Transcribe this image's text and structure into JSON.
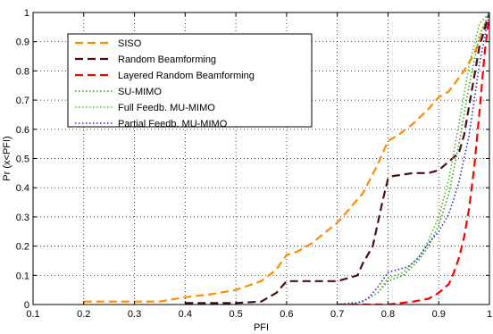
{
  "chart_data": {
    "type": "line",
    "title": "",
    "xlabel": "PFI",
    "ylabel": "Pr (x<PFI)",
    "xlim": [
      0.1,
      1
    ],
    "ylim": [
      0,
      1
    ],
    "xticks": [
      "0.1",
      "0.2",
      "0.3",
      "0.4",
      "0.5",
      "0.6",
      "0.7",
      "0.8",
      "0.9",
      "1"
    ],
    "yticks": [
      "0",
      "0.1",
      "0.2",
      "0.3",
      "0.4",
      "0.5",
      "0.6",
      "0.7",
      "0.8",
      "0.9",
      "1"
    ],
    "grid": true,
    "legend_position": "top-left",
    "series": [
      {
        "name": "SISO",
        "color": "#ff8c00",
        "dash": "dashed",
        "x": [
          0.2,
          0.35,
          0.4,
          0.45,
          0.5,
          0.55,
          0.58,
          0.6,
          0.62,
          0.65,
          0.7,
          0.75,
          0.78,
          0.8,
          0.82,
          0.85,
          0.88,
          0.9,
          0.92,
          0.95,
          0.97,
          0.98,
          0.99,
          1.0
        ],
        "y": [
          0.01,
          0.01,
          0.025,
          0.035,
          0.05,
          0.08,
          0.12,
          0.17,
          0.18,
          0.21,
          0.28,
          0.38,
          0.48,
          0.56,
          0.58,
          0.62,
          0.67,
          0.71,
          0.73,
          0.8,
          0.86,
          0.9,
          0.95,
          1.0
        ]
      },
      {
        "name": "Random Beamforming",
        "color": "#4a0f0f",
        "dash": "dashed",
        "x": [
          0.4,
          0.5,
          0.55,
          0.58,
          0.6,
          0.65,
          0.7,
          0.74,
          0.75,
          0.77,
          0.78,
          0.79,
          0.8,
          0.81,
          0.85,
          0.88,
          0.9,
          0.92,
          0.94,
          0.95,
          0.96,
          0.98,
          1.0
        ],
        "y": [
          0.005,
          0.005,
          0.01,
          0.04,
          0.08,
          0.08,
          0.08,
          0.1,
          0.14,
          0.2,
          0.28,
          0.36,
          0.43,
          0.44,
          0.45,
          0.45,
          0.46,
          0.49,
          0.52,
          0.58,
          0.68,
          0.88,
          1.0
        ]
      },
      {
        "name": "Layered Random Beamforming",
        "color": "#ff0000",
        "dash": "dashed",
        "x": [
          0.7,
          0.8,
          0.85,
          0.88,
          0.9,
          0.92,
          0.93,
          0.94,
          0.95,
          0.96,
          0.97,
          0.98,
          0.99,
          1.0
        ],
        "y": [
          0.0,
          0.0,
          0.01,
          0.02,
          0.04,
          0.07,
          0.11,
          0.16,
          0.23,
          0.33,
          0.47,
          0.65,
          0.85,
          1.0
        ]
      },
      {
        "name": "SU-MIMO",
        "color": "#2aa22a",
        "dash": "dotted",
        "x": [
          0.7,
          0.75,
          0.78,
          0.8,
          0.83,
          0.86,
          0.88,
          0.9,
          0.92,
          0.94,
          0.96,
          0.98,
          1.0
        ],
        "y": [
          0.0,
          0.01,
          0.04,
          0.08,
          0.1,
          0.15,
          0.2,
          0.27,
          0.38,
          0.55,
          0.75,
          0.92,
          1.0
        ]
      },
      {
        "name": "Full Feedb. MU-MIMO",
        "color": "#5ab41e",
        "dash": "dotted",
        "x": [
          0.7,
          0.75,
          0.78,
          0.8,
          0.83,
          0.86,
          0.88,
          0.9,
          0.92,
          0.94,
          0.96,
          0.98,
          1.0
        ],
        "y": [
          0.0,
          0.01,
          0.04,
          0.09,
          0.11,
          0.16,
          0.22,
          0.3,
          0.43,
          0.62,
          0.82,
          0.96,
          1.0
        ]
      },
      {
        "name": "Partial Feedb. MU-MIMO",
        "color": "#1f2fd6",
        "dash": "dotted",
        "x": [
          0.7,
          0.74,
          0.76,
          0.78,
          0.8,
          0.82,
          0.84,
          0.86,
          0.88,
          0.9,
          0.92,
          0.94,
          0.96,
          0.98,
          1.0
        ],
        "y": [
          0.0,
          0.005,
          0.02,
          0.06,
          0.11,
          0.12,
          0.13,
          0.16,
          0.21,
          0.25,
          0.31,
          0.42,
          0.58,
          0.82,
          1.0
        ]
      }
    ]
  }
}
